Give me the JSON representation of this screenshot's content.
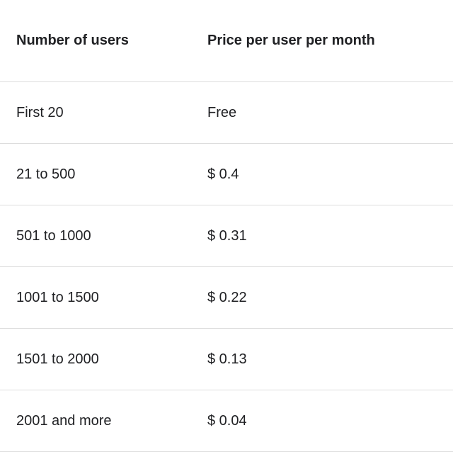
{
  "colors": {
    "text": "#202124",
    "border": "#dddddd",
    "background": "#ffffff"
  },
  "pricing_table": {
    "columns": [
      {
        "id": "users",
        "label": "Number of users"
      },
      {
        "id": "price",
        "label": "Price per user per month"
      }
    ],
    "rows": [
      {
        "users": "First 20",
        "price": "Free"
      },
      {
        "users": "21 to 500",
        "price": "$ 0.4"
      },
      {
        "users": "501 to 1000",
        "price": "$ 0.31"
      },
      {
        "users": "1001 to 1500",
        "price": "$ 0.22"
      },
      {
        "users": "1501 to 2000",
        "price": "$ 0.13"
      },
      {
        "users": "2001 and more",
        "price": "$ 0.04"
      }
    ]
  },
  "chart_data": {
    "type": "table",
    "columns": [
      "Number of users",
      "Price per user per month"
    ],
    "rows": [
      [
        "First 20",
        "Free"
      ],
      [
        "21 to 500",
        "$ 0.4"
      ],
      [
        "501 to 1000",
        "$ 0.31"
      ],
      [
        "1001 to 1500",
        "$ 0.22"
      ],
      [
        "1501 to 2000",
        "$ 0.13"
      ],
      [
        "2001 and more",
        "$ 0.04"
      ]
    ]
  }
}
